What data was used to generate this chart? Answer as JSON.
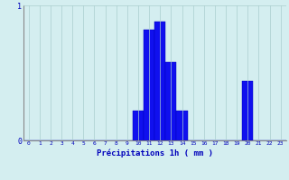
{
  "xlabel": "Précipitations 1h ( mm )",
  "hours": [
    0,
    1,
    2,
    3,
    4,
    5,
    6,
    7,
    8,
    9,
    10,
    11,
    12,
    13,
    14,
    15,
    16,
    17,
    18,
    19,
    20,
    21,
    22,
    23
  ],
  "values": [
    0,
    0,
    0,
    0,
    0,
    0,
    0,
    0,
    0,
    0,
    0.22,
    0.82,
    0.88,
    0.58,
    0.22,
    0,
    0,
    0,
    0,
    0,
    0.44,
    0,
    0,
    0
  ],
  "bar_color": "#1010ee",
  "bar_edge_color": "#0000bb",
  "background_color": "#d4eef0",
  "grid_color": "#aacece",
  "text_color": "#0000bb",
  "ylim": [
    0,
    1.0
  ],
  "yticks": [
    0,
    1
  ],
  "xlim": [
    -0.5,
    23.5
  ]
}
